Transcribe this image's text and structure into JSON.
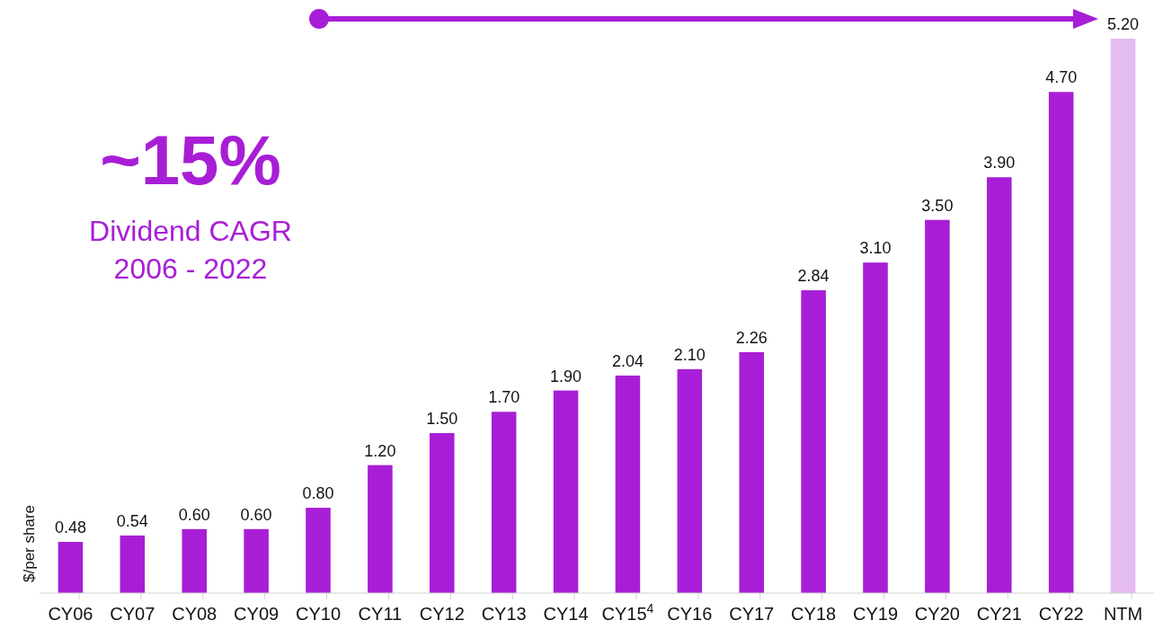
{
  "chart_data": {
    "type": "bar",
    "ylabel": "$/per share",
    "categories": [
      "CY06",
      "CY07",
      "CY08",
      "CY09",
      "CY10",
      "CY11",
      "CY12",
      "CY13",
      "CY14",
      "CY15$^{4}$",
      "CY16",
      "CY17",
      "CY18",
      "CY19",
      "CY20",
      "CY21",
      "CY22",
      "NTM"
    ],
    "values": [
      0.48,
      0.54,
      0.6,
      0.6,
      0.8,
      1.2,
      1.5,
      1.7,
      1.9,
      2.04,
      2.1,
      2.26,
      2.84,
      3.1,
      3.5,
      3.9,
      4.7,
      5.2
    ],
    "colors": [
      "#a81ed6",
      "#a81ed6",
      "#a81ed6",
      "#a81ed6",
      "#a81ed6",
      "#a81ed6",
      "#a81ed6",
      "#a81ed6",
      "#a81ed6",
      "#a81ed6",
      "#a81ed6",
      "#a81ed6",
      "#a81ed6",
      "#a81ed6",
      "#a81ed6",
      "#a81ed6",
      "#a81ed6",
      "#e4bcf0"
    ],
    "value_labels": [
      "0.48",
      "0.54",
      "0.60",
      "0.60",
      "0.80",
      "1.20",
      "1.50",
      "1.70",
      "1.90",
      "2.04",
      "2.10",
      "2.26",
      "2.84",
      "3.10",
      "3.50",
      "3.90",
      "4.70",
      "5.20"
    ],
    "ylim": [
      0,
      5.2
    ],
    "tick_labels": "x",
    "annotations": [
      "~15%",
      "Dividend CAGR",
      "2006 - 2022"
    ]
  }
}
